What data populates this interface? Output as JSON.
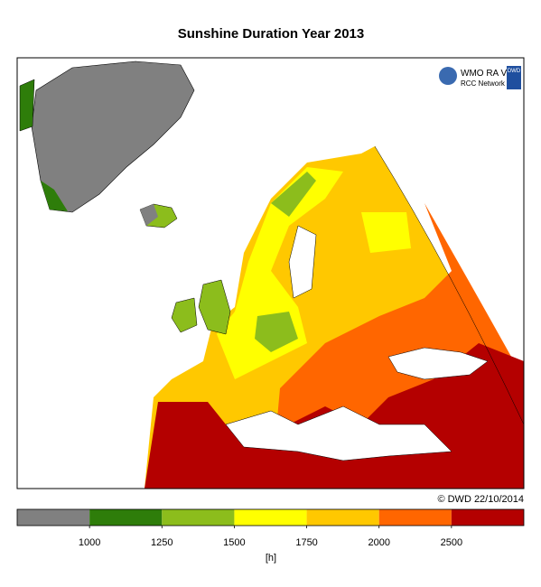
{
  "title": "Sunshine Duration Year 2013",
  "logo": {
    "org": "WMO RA VI",
    "network": "RCC Network",
    "service": "DWD"
  },
  "credit": "© DWD 22/10/2014",
  "legend": {
    "unit": "[h]",
    "colors": [
      "#808080",
      "#2e7d0a",
      "#8cbd1c",
      "#ffff00",
      "#ffc800",
      "#ff6600",
      "#b40000"
    ],
    "ticks": [
      1000,
      1250,
      1500,
      1750,
      2000,
      2500
    ]
  }
}
